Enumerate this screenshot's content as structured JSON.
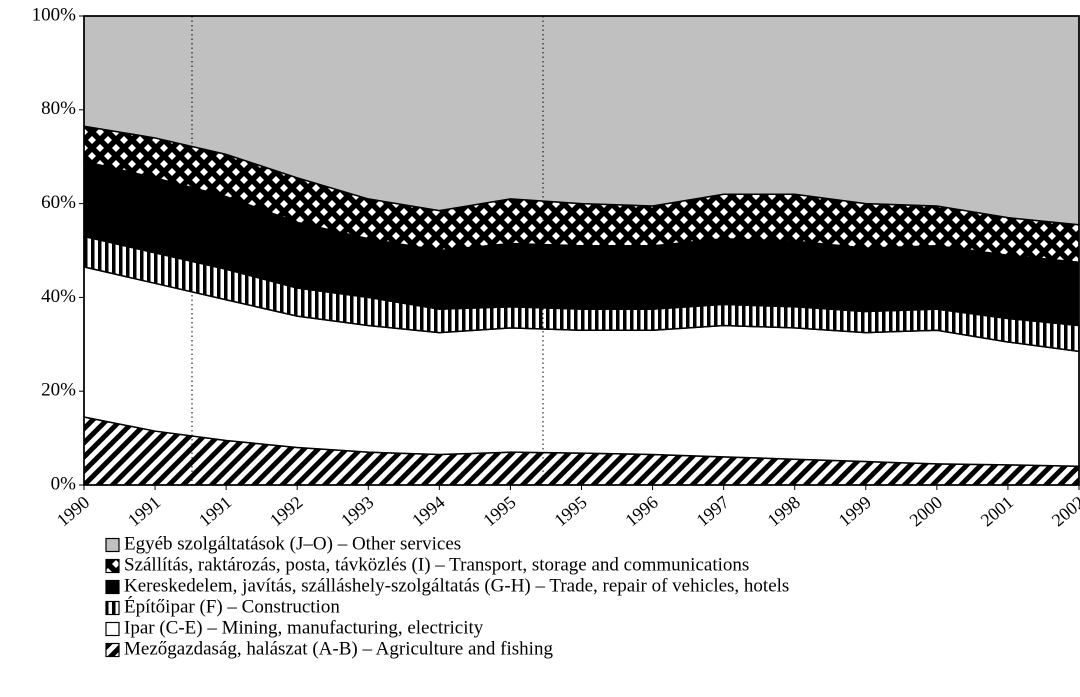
{
  "chart_data": {
    "type": "stacked_area",
    "categories": [
      "1990",
      "1991",
      "1991",
      "1992",
      "1993",
      "1994",
      "1995",
      "1995",
      "1996",
      "1997",
      "1998",
      "1999",
      "2000",
      "2001",
      "2002"
    ],
    "series": [
      {
        "name": "Mezőgazdaság, halászat (A-B) – Agriculture and fishing",
        "color": "#000000",
        "pattern": "diagonal",
        "values": [
          14.5,
          11.5,
          9.5,
          8,
          7,
          6.5,
          7,
          6.8,
          6.5,
          6,
          5.5,
          5,
          4.5,
          4.3,
          4
        ]
      },
      {
        "name": "Ipar (C-E) – Mining, manufacturing, electricity",
        "color": "#ffffff",
        "pattern": "none",
        "values": [
          32,
          31.5,
          30,
          28,
          27,
          26,
          26.5,
          26.2,
          26.5,
          28,
          28,
          27.5,
          28.5,
          26.2,
          24.5
        ]
      },
      {
        "name": "Építőipar (F) – Construction",
        "color": "#000000",
        "pattern": "vertical",
        "values": [
          6.5,
          6.5,
          6.5,
          6,
          6,
          5,
          4.5,
          4.5,
          4.5,
          4.5,
          4.5,
          4.5,
          4.5,
          5,
          5.5
        ]
      },
      {
        "name": "Kereskedelem, javítás, szálláshely-szolgáltatás (G-H) – Trade, repair of vehicles, hotels",
        "color": "#000000",
        "pattern": "none",
        "values": [
          16,
          16,
          15.5,
          14,
          12.5,
          12.5,
          13.5,
          13.5,
          13.5,
          14,
          14,
          13.5,
          13.5,
          13.5,
          13.5
        ]
      },
      {
        "name": "Szállítás, raktározás, posta, távközlés (I) – Transport, storage and communications",
        "color": "#000000",
        "pattern": "checker",
        "values": [
          7.5,
          8.5,
          9,
          9.5,
          8.5,
          8.5,
          9.5,
          9,
          8.5,
          9.5,
          10,
          9.5,
          8.5,
          8,
          8
        ]
      },
      {
        "name": "Egyéb szolgáltatások (J–O) – Other services",
        "color": "#c0c0c0",
        "pattern": "none",
        "values": [
          23.5,
          26,
          29.5,
          34.5,
          39,
          41.5,
          39,
          40,
          40.5,
          38,
          38,
          40,
          40.5,
          43,
          44.5
        ]
      }
    ],
    "ylim": [
      0,
      100
    ],
    "yticks": [
      {
        "value": 0,
        "label": "0%"
      },
      {
        "value": 20,
        "label": "20%"
      },
      {
        "value": 40,
        "label": "40%"
      },
      {
        "value": 60,
        "label": "60%"
      },
      {
        "value": 80,
        "label": "80%"
      },
      {
        "value": 100,
        "label": "100%"
      }
    ]
  }
}
